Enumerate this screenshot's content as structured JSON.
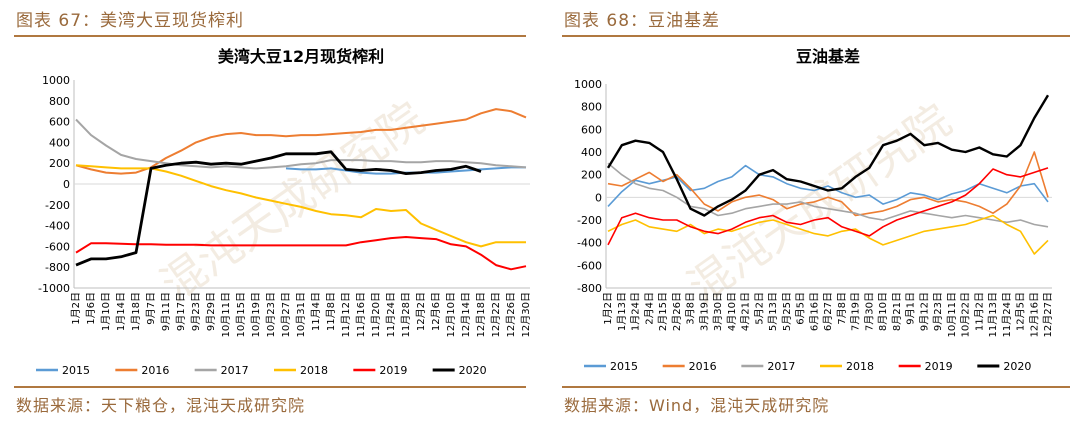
{
  "left": {
    "caption": "图表 67：美湾大豆现货榨利",
    "source": "数据来源：天下粮仓，混沌天成研究院",
    "watermark": "混沌天成研究院"
  },
  "right": {
    "caption": "图表 68：豆油基差",
    "source": "数据来源：Wind，混沌天成研究院",
    "watermark": "混沌天成研究院"
  },
  "colors": {
    "2015": "#5b9bd5",
    "2016": "#ed7d31",
    "2017": "#a5a5a5",
    "2018": "#ffc000",
    "2019": "#ff0000",
    "2020": "#000000",
    "caption": "#9a6a3c"
  },
  "chart_data": [
    {
      "type": "line",
      "title": "美湾大豆12月现货榨利",
      "ylim": [
        -1000,
        1000
      ],
      "yticks": [
        -1000,
        -800,
        -600,
        -400,
        -200,
        0,
        200,
        400,
        600,
        800,
        1000
      ],
      "categories": [
        "1月2日",
        "1月6日",
        "1月10日",
        "1月14日",
        "1月18日",
        "9月7日",
        "9月11日",
        "9月17日",
        "9月23日",
        "9月29日",
        "10月11日",
        "10月15日",
        "10月19日",
        "10月23日",
        "10月27日",
        "10月31日",
        "11月4日",
        "11月8日",
        "11月12日",
        "11月16日",
        "11月20日",
        "11月24日",
        "11月28日",
        "12月2日",
        "12月6日",
        "12月10日",
        "12月14日",
        "12月18日",
        "12月22日",
        "12月26日",
        "12月30日"
      ],
      "legend": [
        "2015",
        "2016",
        "2017",
        "2018",
        "2019",
        "2020"
      ],
      "grid": false,
      "series": [
        {
          "name": "2015",
          "values": [
            null,
            null,
            null,
            null,
            null,
            null,
            null,
            null,
            null,
            null,
            null,
            null,
            null,
            null,
            150,
            140,
            140,
            150,
            130,
            110,
            100,
            100,
            110,
            110,
            110,
            120,
            130,
            140,
            150,
            160,
            160
          ]
        },
        {
          "name": "2016",
          "values": [
            180,
            140,
            110,
            100,
            110,
            160,
            250,
            320,
            400,
            450,
            480,
            490,
            470,
            470,
            460,
            470,
            470,
            480,
            490,
            500,
            520,
            520,
            540,
            560,
            580,
            600,
            620,
            680,
            720,
            700,
            640
          ]
        },
        {
          "name": "2017",
          "values": [
            620,
            470,
            370,
            280,
            240,
            220,
            200,
            180,
            170,
            160,
            170,
            160,
            150,
            160,
            170,
            190,
            200,
            230,
            230,
            230,
            220,
            220,
            210,
            210,
            220,
            220,
            210,
            200,
            180,
            170,
            160
          ]
        },
        {
          "name": "2018",
          "values": [
            180,
            170,
            160,
            150,
            150,
            150,
            120,
            80,
            30,
            -20,
            -60,
            -90,
            -130,
            -160,
            -190,
            -220,
            -260,
            -290,
            -300,
            -320,
            -240,
            -260,
            -250,
            -380,
            -440,
            -500,
            -560,
            -600,
            -560,
            -560,
            -560
          ]
        },
        {
          "name": "2019",
          "values": [
            -660,
            -570,
            -570,
            -575,
            -580,
            -580,
            -585,
            -585,
            -585,
            -590,
            -590,
            -590,
            -590,
            -590,
            -590,
            -590,
            -590,
            -590,
            -590,
            -560,
            -540,
            -520,
            -510,
            -520,
            -530,
            -580,
            -600,
            -680,
            -780,
            -820,
            -790
          ]
        },
        {
          "name": "2020",
          "values": [
            -780,
            -720,
            -720,
            -700,
            -660,
            150,
            180,
            200,
            210,
            190,
            200,
            190,
            220,
            250,
            290,
            290,
            290,
            310,
            140,
            130,
            140,
            130,
            100,
            110,
            130,
            140,
            170,
            120,
            null,
            null,
            null
          ]
        }
      ]
    },
    {
      "type": "line",
      "title": "豆油基差",
      "ylim": [
        -800,
        1000
      ],
      "yticks": [
        -800,
        -600,
        -400,
        -200,
        0,
        200,
        400,
        600,
        800,
        1000
      ],
      "categories": [
        "1月2日",
        "1月13日",
        "1月24日",
        "2月4日",
        "2月15日",
        "2月26日",
        "3月8日",
        "3月19日",
        "3月30日",
        "4月10日",
        "4月21日",
        "5月2日",
        "5月13日",
        "5月25日",
        "6月5日",
        "6月16日",
        "6月27日",
        "7月8日",
        "7月19日",
        "7月30日",
        "8月10日",
        "8月21日",
        "9月1日",
        "9月12日",
        "9月23日",
        "10月11日",
        "10月22日",
        "11月2日",
        "11月13日",
        "11月24日",
        "12月5日",
        "12月16日",
        "12月27日"
      ],
      "legend": [
        "2015",
        "2016",
        "2017",
        "2018",
        "2019",
        "2020"
      ],
      "grid": false,
      "series": [
        {
          "name": "2015",
          "values": [
            -80,
            50,
            150,
            120,
            150,
            180,
            60,
            80,
            140,
            180,
            280,
            200,
            180,
            120,
            80,
            60,
            100,
            40,
            0,
            20,
            -60,
            -20,
            40,
            20,
            -20,
            30,
            60,
            120,
            80,
            40,
            100,
            120,
            -40
          ]
        },
        {
          "name": "2016",
          "values": [
            120,
            100,
            160,
            220,
            140,
            200,
            80,
            -60,
            -120,
            -40,
            0,
            20,
            -20,
            -100,
            -60,
            -40,
            0,
            -40,
            -160,
            -140,
            -120,
            -80,
            -20,
            0,
            -40,
            -20,
            -40,
            -80,
            -140,
            -60,
            100,
            400,
            0
          ]
        },
        {
          "name": "2017",
          "values": [
            300,
            200,
            120,
            80,
            60,
            0,
            -80,
            -100,
            -160,
            -140,
            -100,
            -80,
            -60,
            -60,
            -40,
            -80,
            -100,
            -120,
            -140,
            -180,
            -200,
            -160,
            -120,
            -140,
            -160,
            -180,
            -160,
            -180,
            -200,
            -220,
            -200,
            -240,
            -260
          ]
        },
        {
          "name": "2018",
          "values": [
            -300,
            -240,
            -200,
            -260,
            -280,
            -300,
            -240,
            -320,
            -280,
            -300,
            -260,
            -220,
            -200,
            -240,
            -280,
            -320,
            -340,
            -300,
            -280,
            -360,
            -420,
            -380,
            -340,
            -300,
            -280,
            -260,
            -240,
            -200,
            -160,
            -240,
            -300,
            -500,
            -380
          ]
        },
        {
          "name": "2019",
          "values": [
            -420,
            -180,
            -140,
            -180,
            -200,
            -200,
            -260,
            -300,
            -320,
            -280,
            -220,
            -180,
            -160,
            -220,
            -240,
            -200,
            -180,
            -260,
            -300,
            -340,
            -260,
            -200,
            -160,
            -120,
            -80,
            -40,
            20,
            120,
            250,
            200,
            180,
            220,
            260
          ]
        },
        {
          "name": "2020",
          "values": [
            260,
            460,
            500,
            480,
            400,
            160,
            -100,
            -160,
            -80,
            -20,
            60,
            200,
            240,
            160,
            140,
            100,
            60,
            80,
            180,
            260,
            460,
            500,
            560,
            460,
            480,
            420,
            400,
            440,
            380,
            360,
            460,
            700,
            900
          ]
        }
      ]
    }
  ]
}
